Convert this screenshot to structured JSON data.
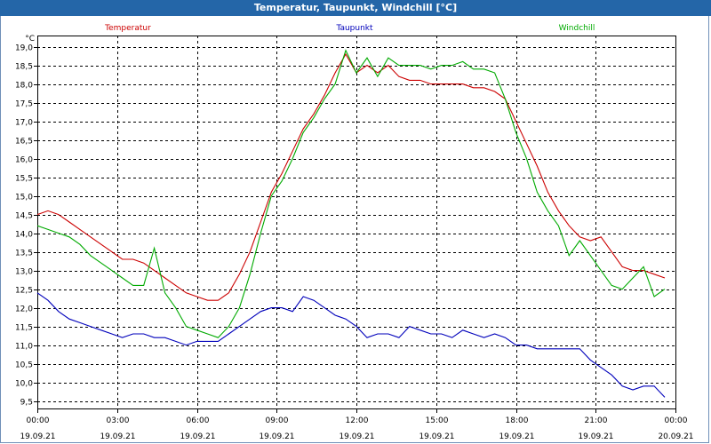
{
  "window": {
    "title": "Temperatur, Taupunkt, Windchill [°C]"
  },
  "colors": {
    "titlebar": "#2466a8",
    "grid": "#000000"
  },
  "chart_data": {
    "type": "line",
    "y_unit": "°C",
    "ylim": [
      9.3,
      19.3
    ],
    "y_ticks": [
      "9,5",
      "10,0",
      "10,5",
      "11,0",
      "11,5",
      "12,0",
      "12,5",
      "13,0",
      "13,5",
      "14,0",
      "14,5",
      "15,0",
      "15,5",
      "16,0",
      "16,5",
      "17,0",
      "17,5",
      "18,0",
      "18,5",
      "19,0"
    ],
    "x_range_hours": [
      0,
      24
    ],
    "x_ticks": [
      {
        "time": "00:00",
        "date": "19.09.21"
      },
      {
        "time": "03:00",
        "date": "19.09.21"
      },
      {
        "time": "06:00",
        "date": "19.09.21"
      },
      {
        "time": "09:00",
        "date": "19.09.21"
      },
      {
        "time": "12:00",
        "date": "19.09.21"
      },
      {
        "time": "15:00",
        "date": "19.09.21"
      },
      {
        "time": "18:00",
        "date": "19.09.21"
      },
      {
        "time": "21:00",
        "date": "19.09.21"
      },
      {
        "time": "00:00",
        "date": "20.09.21"
      }
    ],
    "grid": true,
    "legend_placement": "top",
    "series": [
      {
        "name": "Temperatur",
        "color": "#cc0000",
        "x": [
          0,
          0.4,
          0.8,
          1.2,
          1.6,
          2.0,
          2.4,
          2.8,
          3.2,
          3.6,
          4.0,
          4.4,
          4.8,
          5.2,
          5.6,
          6.0,
          6.4,
          6.8,
          7.2,
          7.6,
          8.0,
          8.4,
          8.8,
          9.2,
          9.6,
          10.0,
          10.4,
          10.8,
          11.2,
          11.6,
          12.0,
          12.4,
          12.8,
          13.2,
          13.6,
          14.0,
          14.4,
          14.8,
          15.2,
          15.6,
          16.0,
          16.4,
          16.8,
          17.2,
          17.6,
          18.0,
          18.4,
          18.8,
          19.2,
          19.6,
          20.0,
          20.4,
          20.8,
          21.2,
          21.6,
          22.0,
          22.4,
          22.8,
          23.2,
          23.6
        ],
        "values": [
          14.5,
          14.6,
          14.5,
          14.3,
          14.1,
          13.9,
          13.7,
          13.5,
          13.3,
          13.3,
          13.2,
          13.0,
          12.8,
          12.6,
          12.4,
          12.3,
          12.2,
          12.2,
          12.4,
          12.9,
          13.5,
          14.3,
          15.1,
          15.6,
          16.2,
          16.8,
          17.2,
          17.7,
          18.3,
          18.8,
          18.3,
          18.5,
          18.3,
          18.5,
          18.2,
          18.1,
          18.1,
          18.0,
          18.0,
          18.0,
          18.0,
          17.9,
          17.9,
          17.8,
          17.6,
          17.0,
          16.4,
          15.8,
          15.1,
          14.6,
          14.2,
          13.9,
          13.8,
          13.9,
          13.5,
          13.1,
          13.0,
          13.0,
          12.9,
          12.8
        ]
      },
      {
        "name": "Taupunkt",
        "color": "#0000bb",
        "x": [
          0,
          0.4,
          0.8,
          1.2,
          1.6,
          2.0,
          2.4,
          2.8,
          3.2,
          3.6,
          4.0,
          4.4,
          4.8,
          5.2,
          5.6,
          6.0,
          6.4,
          6.8,
          7.2,
          7.6,
          8.0,
          8.4,
          8.8,
          9.2,
          9.6,
          10.0,
          10.4,
          10.8,
          11.2,
          11.6,
          12.0,
          12.4,
          12.8,
          13.2,
          13.6,
          14.0,
          14.4,
          14.8,
          15.2,
          15.6,
          16.0,
          16.4,
          16.8,
          17.2,
          17.6,
          18.0,
          18.4,
          18.8,
          19.2,
          19.6,
          20.0,
          20.4,
          20.8,
          21.2,
          21.6,
          22.0,
          22.4,
          22.8,
          23.2,
          23.6
        ],
        "values": [
          12.4,
          12.2,
          11.9,
          11.7,
          11.6,
          11.5,
          11.4,
          11.3,
          11.2,
          11.3,
          11.3,
          11.2,
          11.2,
          11.1,
          11.0,
          11.1,
          11.1,
          11.1,
          11.3,
          11.5,
          11.7,
          11.9,
          12.0,
          12.0,
          11.9,
          12.3,
          12.2,
          12.0,
          11.8,
          11.7,
          11.5,
          11.2,
          11.3,
          11.3,
          11.2,
          11.5,
          11.4,
          11.3,
          11.3,
          11.2,
          11.4,
          11.3,
          11.2,
          11.3,
          11.2,
          11.0,
          11.0,
          10.9,
          10.9,
          10.9,
          10.9,
          10.9,
          10.6,
          10.4,
          10.2,
          9.9,
          9.8,
          9.9,
          9.9,
          9.6
        ]
      },
      {
        "name": "Windchill",
        "color": "#00aa00",
        "x": [
          0,
          0.4,
          0.8,
          1.2,
          1.6,
          2.0,
          2.4,
          2.8,
          3.2,
          3.6,
          4.0,
          4.4,
          4.8,
          5.2,
          5.6,
          6.0,
          6.4,
          6.8,
          7.2,
          7.6,
          8.0,
          8.4,
          8.8,
          9.2,
          9.6,
          10.0,
          10.4,
          10.8,
          11.2,
          11.6,
          12.0,
          12.4,
          12.8,
          13.2,
          13.6,
          14.0,
          14.4,
          14.8,
          15.2,
          15.6,
          16.0,
          16.4,
          16.8,
          17.2,
          17.6,
          18.0,
          18.4,
          18.8,
          19.2,
          19.6,
          20.0,
          20.4,
          20.8,
          21.2,
          21.6,
          22.0,
          22.4,
          22.8,
          23.2,
          23.6
        ],
        "values": [
          14.2,
          14.1,
          14.0,
          13.9,
          13.7,
          13.4,
          13.2,
          13.0,
          12.8,
          12.6,
          12.6,
          13.6,
          12.4,
          12.0,
          11.5,
          11.4,
          11.3,
          11.2,
          11.5,
          12.0,
          12.9,
          14.0,
          15.0,
          15.4,
          16.0,
          16.7,
          17.1,
          17.6,
          18.0,
          18.9,
          18.3,
          18.7,
          18.2,
          18.7,
          18.5,
          18.5,
          18.5,
          18.4,
          18.5,
          18.5,
          18.6,
          18.4,
          18.4,
          18.3,
          17.6,
          16.7,
          16.0,
          15.1,
          14.6,
          14.2,
          13.4,
          13.8,
          13.4,
          13.0,
          12.6,
          12.5,
          12.8,
          13.1,
          12.3,
          12.5
        ]
      }
    ]
  }
}
